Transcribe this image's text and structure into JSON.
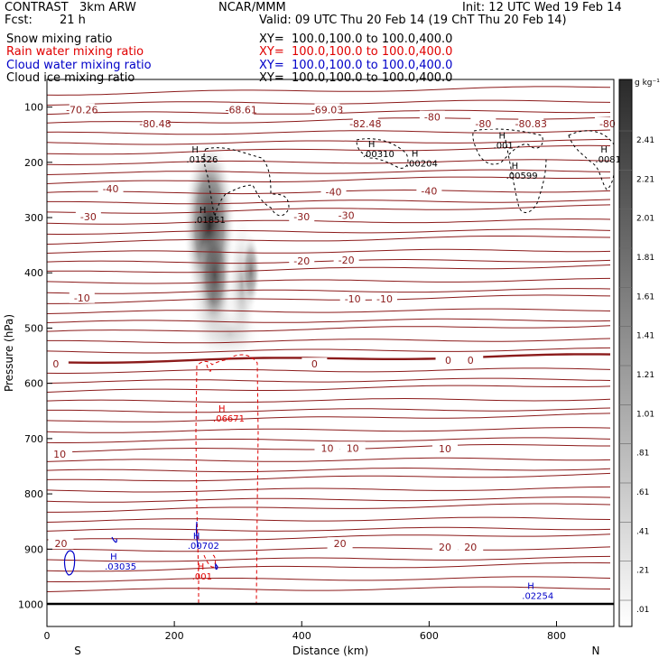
{
  "header": {
    "title": "CONTRAST   3km ARW",
    "center": "NCAR/MMM",
    "init": "Init: 12 UTC Wed 19 Feb 14",
    "fcst_label": "Fcst:",
    "fcst_value": "21 h",
    "valid": "Valid: 09 UTC Thu 20 Feb 14 (19 ChT Thu 20 Feb 14)"
  },
  "fields": [
    {
      "name": "Snow mixing ratio",
      "xy": "XY=  100.0,100.0 to 100.0,400.0",
      "color": "#000000"
    },
    {
      "name": "Rain water mixing ratio",
      "xy": "XY=  100.0,100.0 to 100.0,400.0",
      "color": "#e00000"
    },
    {
      "name": "Cloud water mixing ratio",
      "xy": "XY=  100.0,100.0 to 100.0,400.0",
      "color": "#0000c8"
    },
    {
      "name": "Cloud ice mixing ratio",
      "xy": "XY=  100.0,100.0 to 100.0,400.0",
      "color": "#000000"
    }
  ],
  "colorbar": {
    "unit": "g kg⁻¹",
    "labels": [
      "2.41",
      "2.21",
      "2.01",
      "1.81",
      "1.61",
      "1.41",
      "1.21",
      "1.01",
      ".81",
      ".61",
      ".41",
      ".21",
      ".01"
    ]
  },
  "chart_data": {
    "type": "cross-section contour",
    "xlabel": "Distance (km)",
    "ylabel": "Pressure (hPa)",
    "xlim": [
      0,
      890
    ],
    "ylim": [
      1040,
      50
    ],
    "x_ticks": [
      0,
      200,
      400,
      600,
      800
    ],
    "y_ticks": [
      100,
      200,
      300,
      400,
      500,
      600,
      700,
      800,
      900,
      1000
    ],
    "x_end_labels": [
      "S",
      "N"
    ],
    "temperature_contour_labels": [
      {
        "text": "-70.26",
        "x": 55,
        "p": 105
      },
      {
        "text": "-68.61",
        "x": 305,
        "p": 105
      },
      {
        "text": "-69.03",
        "x": 440,
        "p": 105
      },
      {
        "text": "-80.48",
        "x": 170,
        "p": 130
      },
      {
        "text": "-82.48",
        "x": 500,
        "p": 130
      },
      {
        "text": "-80",
        "x": 605,
        "p": 118
      },
      {
        "text": "-80",
        "x": 685,
        "p": 130
      },
      {
        "text": "-80.83",
        "x": 760,
        "p": 130
      },
      {
        "text": "-80",
        "x": 880,
        "p": 130
      },
      {
        "text": "-40",
        "x": 100,
        "p": 248
      },
      {
        "text": "-40",
        "x": 450,
        "p": 253
      },
      {
        "text": "-40",
        "x": 600,
        "p": 252
      },
      {
        "text": "-30",
        "x": 65,
        "p": 298
      },
      {
        "text": "-30",
        "x": 400,
        "p": 298
      },
      {
        "text": "-30",
        "x": 470,
        "p": 296
      },
      {
        "text": "-20",
        "x": 400,
        "p": 378
      },
      {
        "text": "-20",
        "x": 470,
        "p": 377
      },
      {
        "text": "-10",
        "x": 55,
        "p": 445
      },
      {
        "text": "-10",
        "x": 480,
        "p": 447
      },
      {
        "text": "-10",
        "x": 530,
        "p": 447
      },
      {
        "text": "0",
        "x": 14,
        "p": 565
      },
      {
        "text": "0",
        "x": 420,
        "p": 565
      },
      {
        "text": "0",
        "x": 630,
        "p": 558
      },
      {
        "text": "0",
        "x": 665,
        "p": 558
      },
      {
        "text": "10",
        "x": 20,
        "p": 728
      },
      {
        "text": "10",
        "x": 440,
        "p": 717
      },
      {
        "text": "10",
        "x": 480,
        "p": 717
      },
      {
        "text": "10",
        "x": 625,
        "p": 718
      },
      {
        "text": "20",
        "x": 22,
        "p": 890
      },
      {
        "text": "20",
        "x": 460,
        "p": 890
      },
      {
        "text": "20",
        "x": 625,
        "p": 896
      },
      {
        "text": "20",
        "x": 665,
        "p": 896
      }
    ],
    "high_labels": [
      {
        "value": ".01526",
        "x": 233,
        "p": 195,
        "color": "#000000"
      },
      {
        "value": ".01851",
        "x": 245,
        "p": 305,
        "color": "#000000"
      },
      {
        "value": ".00310",
        "x": 510,
        "p": 186,
        "color": "#000000"
      },
      {
        "value": ".00204",
        "x": 578,
        "p": 203,
        "color": "#000000"
      },
      {
        "value": ".00599",
        "x": 735,
        "p": 225,
        "color": "#000000"
      },
      {
        "value": ".0081",
        "x": 875,
        "p": 195,
        "color": "#000000"
      },
      {
        "value": ".001",
        "x": 715,
        "p": 170,
        "color": "#000000"
      },
      {
        "value": ".06671",
        "x": 275,
        "p": 664,
        "color": "#e00000"
      },
      {
        "value": ".001",
        "x": 242,
        "p": 950,
        "color": "#e00000"
      },
      {
        "value": ".00702",
        "x": 235,
        "p": 895,
        "color": "#0000c8"
      },
      {
        "value": ".03035",
        "x": 105,
        "p": 932,
        "color": "#0000c8"
      },
      {
        "value": ".02254",
        "x": 760,
        "p": 985,
        "color": "#0000c8"
      }
    ]
  }
}
